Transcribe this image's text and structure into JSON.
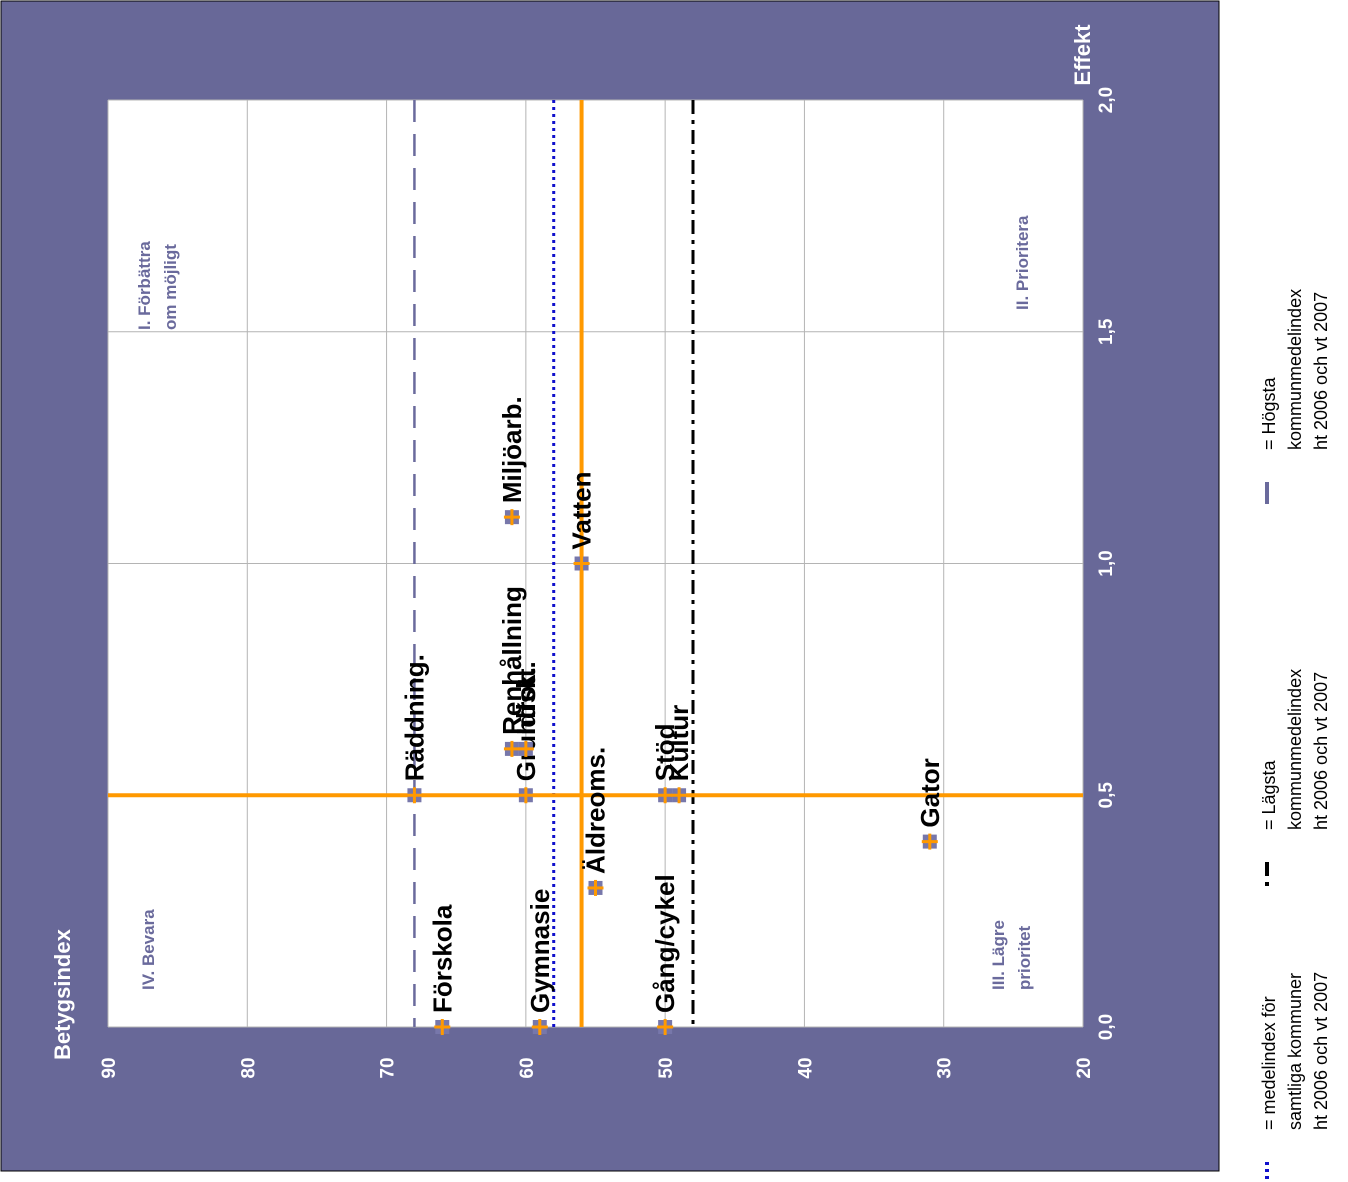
{
  "chart_data": {
    "type": "scatter",
    "xlabel": "Effekt",
    "ylabel": "Betygsindex",
    "xlim": [
      0,
      2
    ],
    "ylim": [
      20,
      90
    ],
    "x_ticks": [
      "0,0",
      "0,5",
      "1,0",
      "1,5",
      "2,0"
    ],
    "y_ticks": [
      "20",
      "30",
      "40",
      "50",
      "60",
      "70",
      "80",
      "90"
    ],
    "grid": true,
    "orientation": "rotated 90° counter-clockwise",
    "quadrants": {
      "q1": [
        "I. Förbättra",
        "om möjligt"
      ],
      "q2": [
        "II. Prioritera"
      ],
      "q3": [
        "III. Lägre",
        "prioritet"
      ],
      "q4": [
        "IV. Bevara"
      ]
    },
    "points": [
      {
        "label": "Förskola",
        "x": 0.0,
        "y": 66
      },
      {
        "label": "Gymnasie",
        "x": 0.0,
        "y": 59
      },
      {
        "label": "Gång/cykel",
        "x": 0.0,
        "y": 50
      },
      {
        "label": "Äldreoms.",
        "x": 0.3,
        "y": 55
      },
      {
        "label": "Gator",
        "x": 0.4,
        "y": 31
      },
      {
        "label": "Räddning.",
        "x": 0.5,
        "y": 68
      },
      {
        "label": "Grundsk.",
        "x": 0.5,
        "y": 60
      },
      {
        "label": "Stöd",
        "x": 0.5,
        "y": 50
      },
      {
        "label": "Kultur",
        "x": 0.5,
        "y": 49
      },
      {
        "label": "Idrott.",
        "x": 0.6,
        "y": 60
      },
      {
        "label": "Renhållning",
        "x": 0.6,
        "y": 61
      },
      {
        "label": "Vatten",
        "x": 1.0,
        "y": 56
      },
      {
        "label": "Miljöarb.",
        "x": 1.1,
        "y": 61
      }
    ],
    "quadrant_lines": {
      "x": 0.5,
      "y": 56
    },
    "reference_lines": [
      {
        "key": "high",
        "y": 68,
        "style": "long-dash",
        "color": "#6a6a9c"
      },
      {
        "key": "mean",
        "y": 58,
        "style": "dotted",
        "color": "#1010cc"
      },
      {
        "key": "low",
        "y": 48,
        "style": "dash-dot",
        "color": "#000000"
      }
    ],
    "legend": [
      {
        "key": "mean",
        "lines": [
          "= medelindex för",
          "samtliga kommuner",
          "ht 2006 och vt 2007"
        ]
      },
      {
        "key": "low",
        "lines": [
          "= Lägsta",
          "kommunmedelindex",
          "ht 2006 och vt 2007"
        ]
      },
      {
        "key": "high",
        "lines": [
          "= Högsta",
          "kommunmedelindex",
          "ht 2006 och vt 2007"
        ]
      }
    ],
    "colors": {
      "frame": "#686898",
      "plot_bg": "#ffffff",
      "grid": "#b4b4b4",
      "accent": "#ff9900",
      "marker_inner": "#7777aa"
    }
  }
}
